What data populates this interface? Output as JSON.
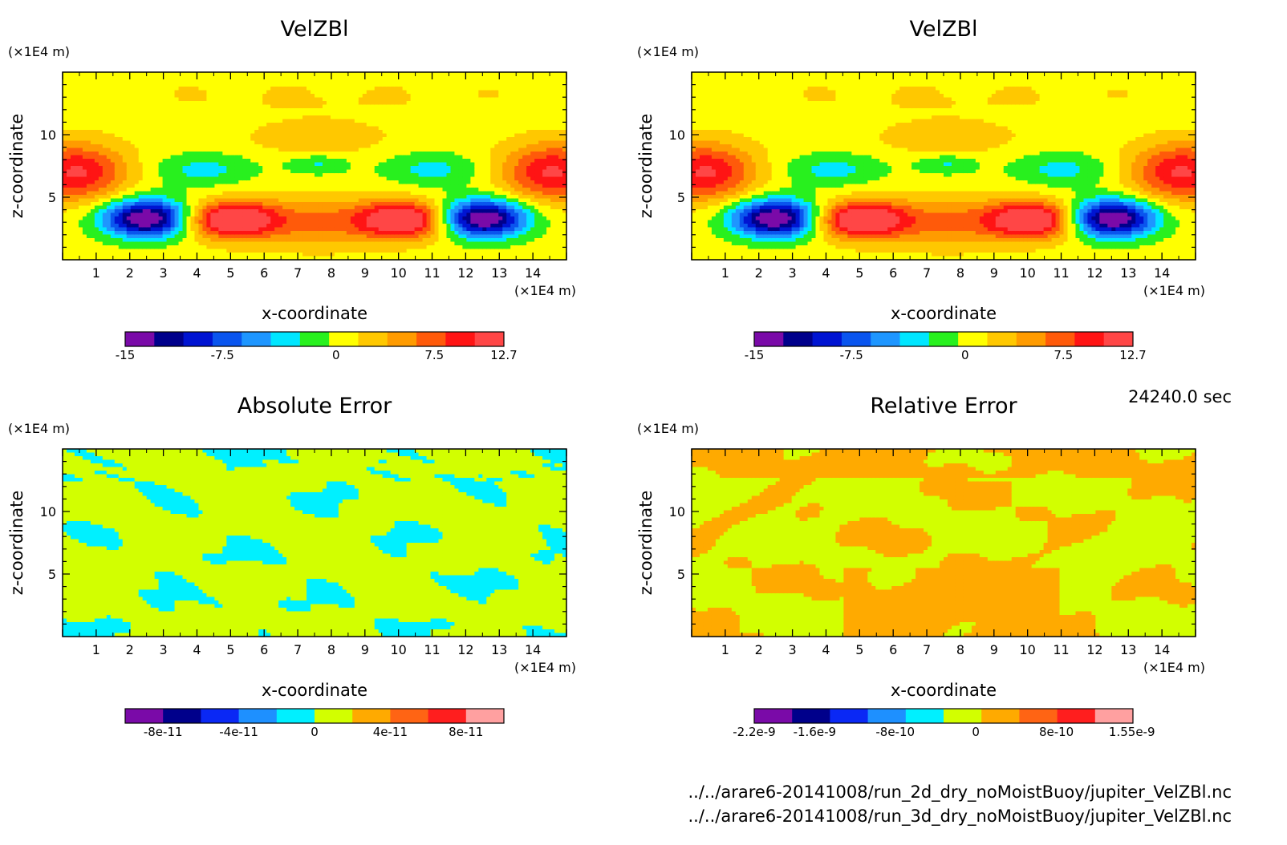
{
  "time_label": "24240.0 sec",
  "file_paths": [
    "../../arare6-20141008/run_2d_dry_noMoistBuoy/jupiter_VelZBl.nc",
    "../../arare6-20141008/run_3d_dry_noMoistBuoy/jupiter_VelZBl.nc"
  ],
  "chart_data": [
    {
      "type": "heatmap",
      "title": "VelZBl",
      "xlabel": "x-coordinate",
      "ylabel": "z-coordinate",
      "x_unit": "(×1E4 m)",
      "y_unit": "(×1E4 m)",
      "xlim": [
        0,
        15
      ],
      "ylim": [
        0,
        15
      ],
      "x_ticks": [
        "1",
        "2",
        "3",
        "4",
        "5",
        "6",
        "7",
        "8",
        "9",
        "10",
        "11",
        "12",
        "13",
        "14"
      ],
      "y_ticks": [
        "5",
        "10"
      ],
      "colorbar": {
        "colors": [
          "#7a0aa8",
          "#00008b",
          "#0014d2",
          "#0a55ee",
          "#1e96ff",
          "#00e6ff",
          "#28f01e",
          "#ffff00",
          "#ffc800",
          "#ff9b00",
          "#ff5a0a",
          "#ff1414",
          "#ff4646"
        ],
        "tick_labels": [
          "-15",
          "-7.5",
          "0",
          "7.5",
          "12.7"
        ],
        "tick_positions": [
          0.0,
          0.2568,
          0.5568,
          0.8162,
          1.0
        ]
      }
    },
    {
      "type": "heatmap",
      "title": "VelZBl",
      "xlabel": "x-coordinate",
      "ylabel": "z-coordinate",
      "x_unit": "(×1E4 m)",
      "y_unit": "(×1E4 m)",
      "xlim": [
        0,
        15
      ],
      "ylim": [
        0,
        15
      ],
      "x_ticks": [
        "1",
        "2",
        "3",
        "4",
        "5",
        "6",
        "7",
        "8",
        "9",
        "10",
        "11",
        "12",
        "13",
        "14"
      ],
      "y_ticks": [
        "5",
        "10"
      ],
      "colorbar": {
        "colors": [
          "#7a0aa8",
          "#00008b",
          "#0014d2",
          "#0a55ee",
          "#1e96ff",
          "#00e6ff",
          "#28f01e",
          "#ffff00",
          "#ffc800",
          "#ff9b00",
          "#ff5a0a",
          "#ff1414",
          "#ff4646"
        ],
        "tick_labels": [
          "-15",
          "-7.5",
          "0",
          "7.5",
          "12.7"
        ],
        "tick_positions": [
          0.0,
          0.2568,
          0.5568,
          0.8162,
          1.0
        ]
      }
    },
    {
      "type": "heatmap",
      "title": "Absolute Error",
      "xlabel": "x-coordinate",
      "ylabel": "z-coordinate",
      "x_unit": "(×1E4 m)",
      "y_unit": "(×1E4 m)",
      "xlim": [
        0,
        15
      ],
      "ylim": [
        0,
        15
      ],
      "x_ticks": [
        "1",
        "2",
        "3",
        "4",
        "5",
        "6",
        "7",
        "8",
        "9",
        "10",
        "11",
        "12",
        "13",
        "14"
      ],
      "y_ticks": [
        "5",
        "10"
      ],
      "colorbar": {
        "colors": [
          "#7a0aa8",
          "#00008b",
          "#0a28f5",
          "#1e90ff",
          "#00f0ff",
          "#d2ff00",
          "#ffaa00",
          "#ff6414",
          "#ff1e1e",
          "#ffa0a0"
        ],
        "tick_labels": [
          "-8e-11",
          "-4e-11",
          "0",
          "4e-11",
          "8e-11"
        ],
        "tick_positions": [
          0.1,
          0.3,
          0.5,
          0.7,
          0.9
        ]
      }
    },
    {
      "type": "heatmap",
      "title": "Relative Error",
      "xlabel": "x-coordinate",
      "ylabel": "z-coordinate",
      "x_unit": "(×1E4 m)",
      "y_unit": "(×1E4 m)",
      "xlim": [
        0,
        15
      ],
      "ylim": [
        0,
        15
      ],
      "x_ticks": [
        "1",
        "2",
        "3",
        "4",
        "5",
        "6",
        "7",
        "8",
        "9",
        "10",
        "11",
        "12",
        "13",
        "14"
      ],
      "y_ticks": [
        "5",
        "10"
      ],
      "colorbar": {
        "colors": [
          "#7a0aa8",
          "#00008b",
          "#0a28f5",
          "#1e90ff",
          "#00f0ff",
          "#d2ff00",
          "#ffaa00",
          "#ff6414",
          "#ff1e1e",
          "#ffa0a0"
        ],
        "tick_labels": [
          "-2.2e-9",
          "-1.6e-9",
          "-8e-10",
          "0",
          "8e-10",
          "1.55e-9"
        ],
        "tick_positions": [
          0.0,
          0.1596,
          0.3723,
          0.5851,
          0.7979,
          0.9973
        ]
      }
    }
  ]
}
